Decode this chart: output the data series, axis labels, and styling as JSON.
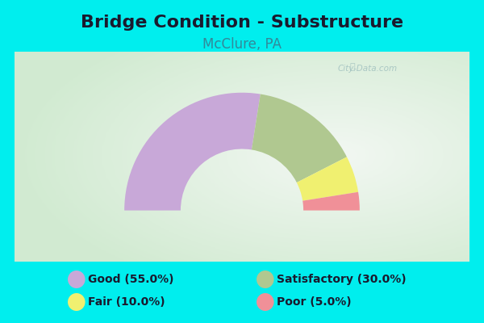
{
  "title": "Bridge Condition - Substructure",
  "subtitle": "McClure, PA",
  "title_fontsize": 16,
  "subtitle_fontsize": 12,
  "title_color": "#1a1a2e",
  "subtitle_color": "#338899",
  "background_color": "#00eeee",
  "chart_bg_color": "#e8f2e8",
  "segments": [
    {
      "label": "Good (55.0%)",
      "value": 55.0,
      "color": "#c8a8d8"
    },
    {
      "label": "Satisfactory (30.0%)",
      "value": 30.0,
      "color": "#b0c890"
    },
    {
      "label": "Fair (10.0%)",
      "value": 10.0,
      "color": "#f0f070"
    },
    {
      "label": "Poor (5.0%)",
      "value": 5.0,
      "color": "#f09098"
    }
  ],
  "legend_colors": [
    "#c8a8d8",
    "#b0c890",
    "#f0f070",
    "#f09098"
  ],
  "outer_r": 1.15,
  "inner_r": 0.6,
  "watermark": "City-Data.com"
}
